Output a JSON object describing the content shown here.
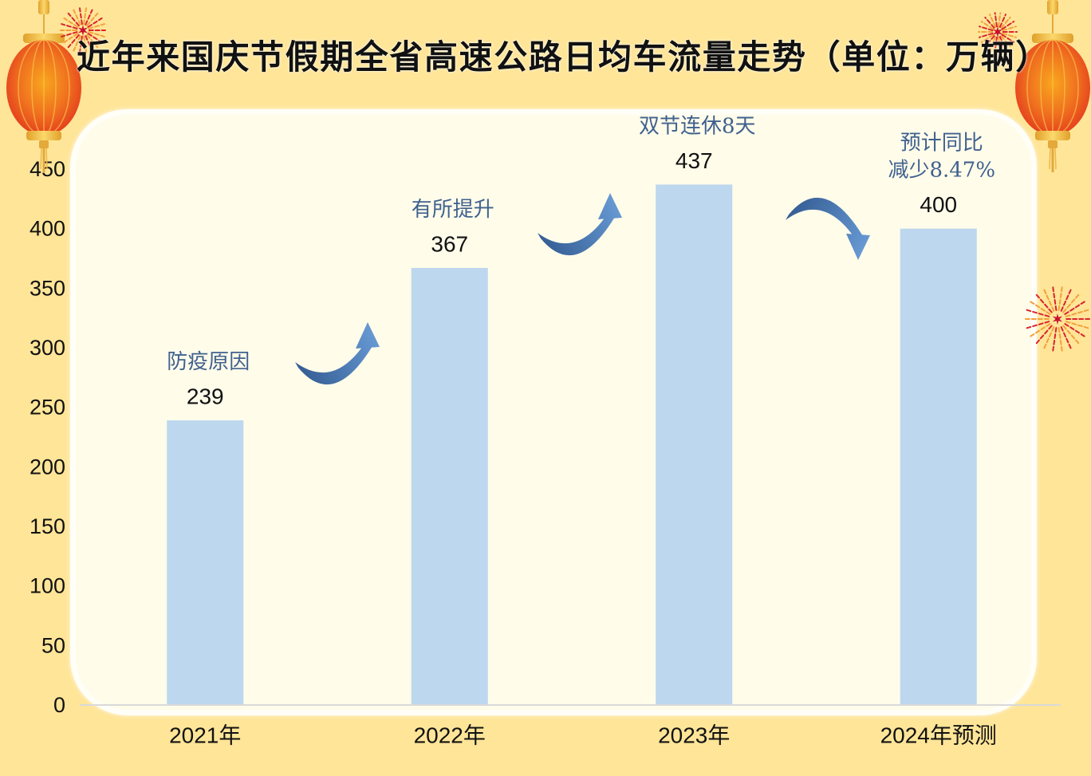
{
  "colors": {
    "background": "#FFE598",
    "panel": "#FFFCEA",
    "bar": "#BDD7EE",
    "axis": "#D9D9D9",
    "annotation": "#40618F",
    "arrow": "#4A7DBA"
  },
  "decorations": {
    "lantern": "lantern-icon",
    "firework": "firework-icon"
  },
  "chart_data": {
    "type": "bar",
    "title": "近年来国庆节假期全省高速公路日均车流量走势（单位：万辆）",
    "categories": [
      "2021年",
      "2022年",
      "2023年",
      "2024年预测"
    ],
    "values": [
      239,
      367,
      437,
      400
    ],
    "ylim": [
      0,
      450
    ],
    "yticks": [
      0,
      50,
      100,
      150,
      200,
      250,
      300,
      350,
      400,
      450
    ],
    "grid": false,
    "annotations": [
      [
        "防疫原因"
      ],
      [
        "有所提升"
      ],
      [
        "双节连休8天"
      ],
      [
        "预计同比",
        "减少8.47%"
      ]
    ],
    "trend_arrows": [
      "curved-arrow-up-icon",
      "curved-arrow-up-icon",
      "curved-arrow-down-icon"
    ]
  }
}
